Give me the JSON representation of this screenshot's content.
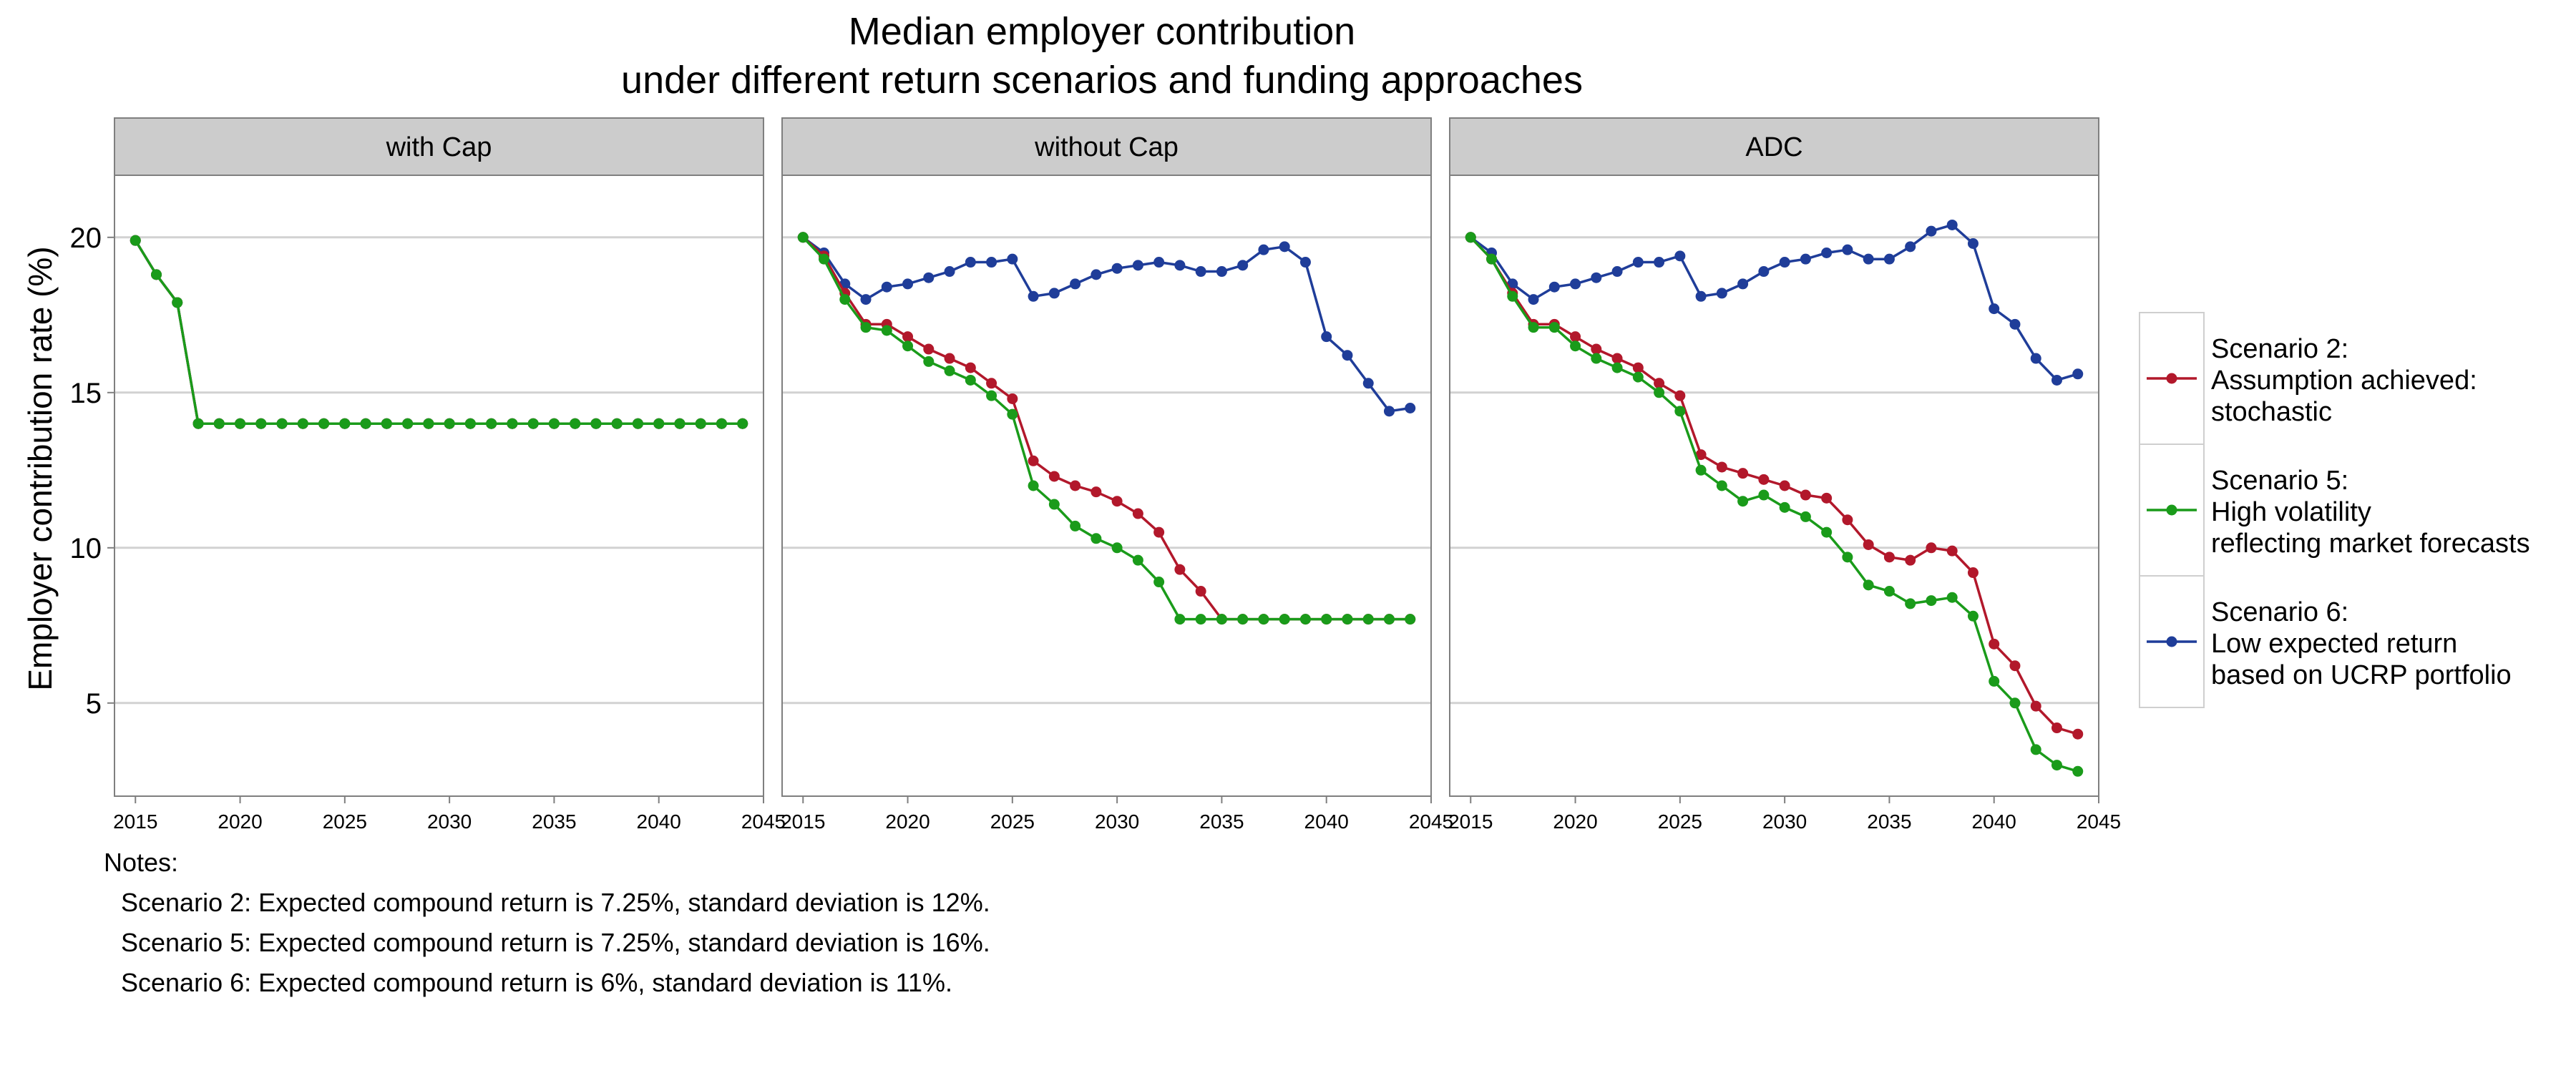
{
  "title_line1": "Median employer contribution",
  "title_line2": "under different return scenarios and funding approaches",
  "chart_data": {
    "type": "line",
    "ylabel": "Employer contribution rate (%)",
    "xlabel": "",
    "ylim": [
      2,
      22
    ],
    "yticks": [
      5,
      10,
      15,
      20
    ],
    "xlim": [
      2014,
      2045
    ],
    "xticks": [
      2015,
      2020,
      2025,
      2030,
      2035,
      2040,
      2045
    ],
    "grid": true,
    "legend_position": "right",
    "legend": [
      {
        "series": "s2",
        "lines": [
          "Scenario 2:",
          "Assumption achieved:",
          "stochastic"
        ],
        "color": "#b2182b"
      },
      {
        "series": "s5",
        "lines": [
          "Scenario 5:",
          "High volatility",
          "reflecting market forecasts"
        ],
        "color": "#1a9b1a"
      },
      {
        "series": "s6",
        "lines": [
          "Scenario 6:",
          "Low expected return",
          "based on UCRP portfolio"
        ],
        "color": "#1f3d99"
      }
    ],
    "x": [
      2015,
      2016,
      2017,
      2018,
      2019,
      2020,
      2021,
      2022,
      2023,
      2024,
      2025,
      2026,
      2027,
      2028,
      2029,
      2030,
      2031,
      2032,
      2033,
      2034,
      2035,
      2036,
      2037,
      2038,
      2039,
      2040,
      2041,
      2042,
      2043,
      2044
    ],
    "panels": [
      {
        "label": "with Cap",
        "series": [
          {
            "key": "s6",
            "color": "#1f3d99",
            "values": [
              19.9,
              18.8,
              17.9,
              14.0,
              14.0,
              14.0,
              14.0,
              14.0,
              14.0,
              14.0,
              14.0,
              14.0,
              14.0,
              14.0,
              14.0,
              14.0,
              14.0,
              14.0,
              14.0,
              14.0,
              14.0,
              14.0,
              14.0,
              14.0,
              14.0,
              14.0,
              14.0,
              14.0,
              14.0,
              14.0
            ]
          },
          {
            "key": "s2",
            "color": "#b2182b",
            "values": [
              19.9,
              18.8,
              17.9,
              14.0,
              14.0,
              14.0,
              14.0,
              14.0,
              14.0,
              14.0,
              14.0,
              14.0,
              14.0,
              14.0,
              14.0,
              14.0,
              14.0,
              14.0,
              14.0,
              14.0,
              14.0,
              14.0,
              14.0,
              14.0,
              14.0,
              14.0,
              14.0,
              14.0,
              14.0,
              14.0
            ]
          },
          {
            "key": "s5",
            "color": "#1a9b1a",
            "values": [
              19.9,
              18.8,
              17.9,
              14.0,
              14.0,
              14.0,
              14.0,
              14.0,
              14.0,
              14.0,
              14.0,
              14.0,
              14.0,
              14.0,
              14.0,
              14.0,
              14.0,
              14.0,
              14.0,
              14.0,
              14.0,
              14.0,
              14.0,
              14.0,
              14.0,
              14.0,
              14.0,
              14.0,
              14.0,
              14.0
            ]
          }
        ]
      },
      {
        "label": "without Cap",
        "series": [
          {
            "key": "s6",
            "color": "#1f3d99",
            "values": [
              20.0,
              19.5,
              18.5,
              18.0,
              18.4,
              18.5,
              18.7,
              18.9,
              19.2,
              19.2,
              19.3,
              18.1,
              18.2,
              18.5,
              18.8,
              19.0,
              19.1,
              19.2,
              19.1,
              18.9,
              18.9,
              19.1,
              19.6,
              19.7,
              19.2,
              16.8,
              16.2,
              15.3,
              14.4,
              14.5
            ]
          },
          {
            "key": "s2",
            "color": "#b2182b",
            "values": [
              20.0,
              19.4,
              18.2,
              17.2,
              17.2,
              16.8,
              16.4,
              16.1,
              15.8,
              15.3,
              14.8,
              12.8,
              12.3,
              12.0,
              11.8,
              11.5,
              11.1,
              10.5,
              9.3,
              8.6,
              7.7,
              7.7,
              7.7,
              7.7,
              7.7,
              7.7,
              7.7,
              7.7,
              7.7,
              7.7
            ]
          },
          {
            "key": "s5",
            "color": "#1a9b1a",
            "values": [
              20.0,
              19.3,
              18.0,
              17.1,
              17.0,
              16.5,
              16.0,
              15.7,
              15.4,
              14.9,
              14.3,
              12.0,
              11.4,
              10.7,
              10.3,
              10.0,
              9.6,
              8.9,
              7.7,
              7.7,
              7.7,
              7.7,
              7.7,
              7.7,
              7.7,
              7.7,
              7.7,
              7.7,
              7.7,
              7.7
            ]
          }
        ]
      },
      {
        "label": "ADC",
        "series": [
          {
            "key": "s6",
            "color": "#1f3d99",
            "values": [
              20.0,
              19.5,
              18.5,
              18.0,
              18.4,
              18.5,
              18.7,
              18.9,
              19.2,
              19.2,
              19.4,
              18.1,
              18.2,
              18.5,
              18.9,
              19.2,
              19.3,
              19.5,
              19.6,
              19.3,
              19.3,
              19.7,
              20.2,
              20.4,
              19.8,
              17.7,
              17.2,
              16.1,
              15.4,
              15.6
            ]
          },
          {
            "key": "s2",
            "color": "#b2182b",
            "values": [
              20.0,
              19.3,
              18.2,
              17.2,
              17.2,
              16.8,
              16.4,
              16.1,
              15.8,
              15.3,
              14.9,
              13.0,
              12.6,
              12.4,
              12.2,
              12.0,
              11.7,
              11.6,
              10.9,
              10.1,
              9.7,
              9.6,
              10.0,
              9.9,
              9.2,
              6.9,
              6.2,
              4.9,
              4.2,
              4.0
            ]
          },
          {
            "key": "s5",
            "color": "#1a9b1a",
            "values": [
              20.0,
              19.3,
              18.1,
              17.1,
              17.1,
              16.5,
              16.1,
              15.8,
              15.5,
              15.0,
              14.4,
              12.5,
              12.0,
              11.5,
              11.7,
              11.3,
              11.0,
              10.5,
              9.7,
              8.8,
              8.6,
              8.2,
              8.3,
              8.4,
              7.8,
              5.7,
              5.0,
              3.5,
              3.0,
              2.8
            ]
          }
        ]
      }
    ]
  },
  "notes": {
    "heading": "Notes:",
    "lines": [
      "Scenario 2: Expected compound return is 7.25%, standard deviation is 12%.",
      "Scenario 5: Expected compound return is 7.25%, standard deviation is 16%.",
      "Scenario 6: Expected compound return is 6%, standard deviation is 11%."
    ]
  }
}
